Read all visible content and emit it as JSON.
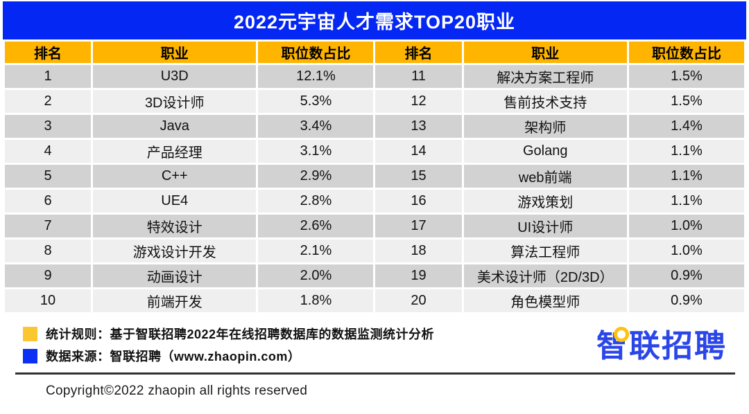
{
  "title": "2022元宇宙人才需求TOP20职业",
  "colors": {
    "title_bar_blue": "#0527F3",
    "header_yellow": "#FFB400",
    "row_dark": "#D2D2D2",
    "row_light": "#EFEFEF",
    "legend_yellow": "#FBC731",
    "legend_blue": "#0B2FF3",
    "logo_blue": "#2B46E8",
    "logo_dot_yellow": "#FFC20E"
  },
  "table": {
    "headers": [
      "排名",
      "职业",
      "职位数占比",
      "排名",
      "职业",
      "职位数占比"
    ],
    "rows": [
      [
        "1",
        "U3D",
        "12.1%",
        "11",
        "解决方案工程师",
        "1.5%"
      ],
      [
        "2",
        "3D设计师",
        "5.3%",
        "12",
        "售前技术支持",
        "1.5%"
      ],
      [
        "3",
        "Java",
        "3.4%",
        "13",
        "架构师",
        "1.4%"
      ],
      [
        "4",
        "产品经理",
        "3.1%",
        "14",
        "Golang",
        "1.1%"
      ],
      [
        "5",
        "C++",
        "2.9%",
        "15",
        "web前端",
        "1.1%"
      ],
      [
        "6",
        "UE4",
        "2.8%",
        "16",
        "游戏策划",
        "1.1%"
      ],
      [
        "7",
        "特效设计",
        "2.6%",
        "17",
        "UI设计师",
        "1.0%"
      ],
      [
        "8",
        "游戏设计开发",
        "2.1%",
        "18",
        "算法工程师",
        "1.0%"
      ],
      [
        "9",
        "动画设计",
        "2.0%",
        "19",
        "美术设计师（2D/3D）",
        "0.9%"
      ],
      [
        "10",
        "前端开发",
        "1.8%",
        "20",
        "角色模型师",
        "0.9%"
      ]
    ]
  },
  "chart_data": {
    "type": "table",
    "title": "2022元宇宙人才需求TOP20职业",
    "columns": [
      "排名",
      "职业",
      "职位数占比"
    ],
    "rows": [
      [
        1,
        "U3D",
        12.1
      ],
      [
        2,
        "3D设计师",
        5.3
      ],
      [
        3,
        "Java",
        3.4
      ],
      [
        4,
        "产品经理",
        3.1
      ],
      [
        5,
        "C++",
        2.9
      ],
      [
        6,
        "UE4",
        2.8
      ],
      [
        7,
        "特效设计",
        2.6
      ],
      [
        8,
        "游戏设计开发",
        2.1
      ],
      [
        9,
        "动画设计",
        2.0
      ],
      [
        10,
        "前端开发",
        1.8
      ],
      [
        11,
        "解决方案工程师",
        1.5
      ],
      [
        12,
        "售前技术支持",
        1.5
      ],
      [
        13,
        "架构师",
        1.4
      ],
      [
        14,
        "Golang",
        1.1
      ],
      [
        15,
        "web前端",
        1.1
      ],
      [
        16,
        "游戏策划",
        1.1
      ],
      [
        17,
        "UI设计师",
        1.0
      ],
      [
        18,
        "算法工程师",
        1.0
      ],
      [
        19,
        "美术设计师（2D/3D）",
        0.9
      ],
      [
        20,
        "角色模型师",
        0.9
      ]
    ],
    "value_unit": "%",
    "layout": "split table: ranks 1-10 in left half, ranks 11-20 in right half"
  },
  "footer": {
    "legend": [
      {
        "swatch_color": "#FBC731",
        "label": "统计规则：基于智联招聘2022年在线招聘数据库的数据监测统计分析"
      },
      {
        "swatch_color": "#0B2FF3",
        "label": "数据来源：智联招聘（www.zhaopin.com）"
      }
    ],
    "logo_text": "智联招聘",
    "copyright": "Copyright©2022 zhaopin all rights reserved"
  }
}
